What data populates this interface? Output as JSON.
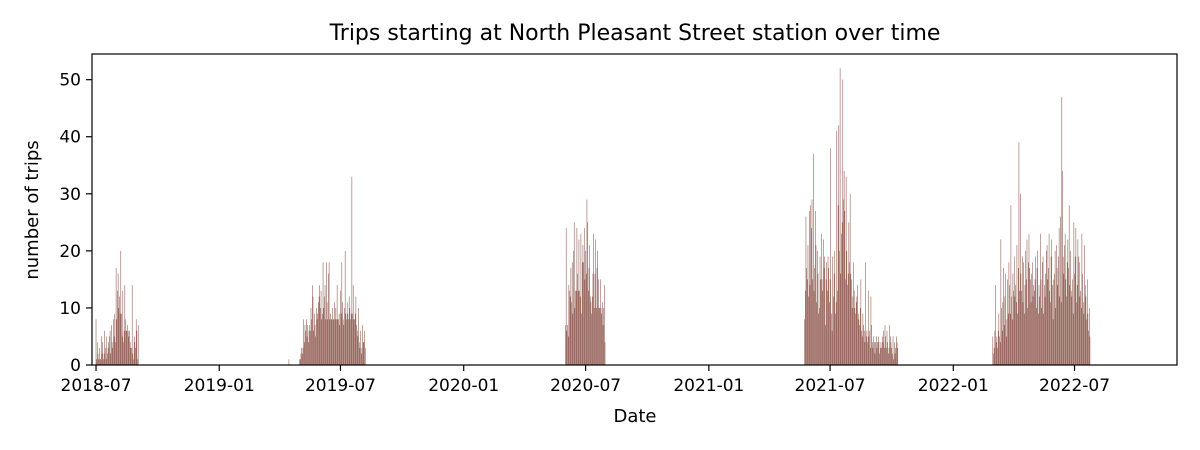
{
  "chart_data": {
    "type": "bar",
    "title": "Trips starting at North Pleasant Street station over time",
    "xlabel": "Date",
    "ylabel": "number of trips",
    "xlim": [
      "2018-06-25",
      "2022-12-01"
    ],
    "ylim": [
      0,
      54.5
    ],
    "x_ticks": [
      "2018-07",
      "2019-01",
      "2019-07",
      "2020-01",
      "2020-07",
      "2021-01",
      "2021-07",
      "2022-01",
      "2022-07"
    ],
    "y_ticks": [
      0,
      10,
      20,
      30,
      40,
      50
    ],
    "bar_color": "#8c564b",
    "grid": false,
    "series": [
      {
        "segments": [
          {
            "start": "2018-07-01",
            "values": [
              8,
              1,
              4,
              2,
              1,
              3,
              1,
              1,
              5,
              2,
              4,
              1,
              2,
              6,
              3,
              1,
              5,
              2,
              3,
              4,
              5,
              6,
              2,
              7,
              4,
              3,
              8,
              5,
              9,
              4,
              17,
              8,
              13,
              16,
              10,
              12,
              9,
              20,
              9,
              5,
              13,
              4,
              6,
              14,
              8,
              6,
              6,
              7,
              6,
              5,
              6,
              4,
              3,
              3,
              14,
              2,
              1,
              5,
              4,
              3,
              8,
              6,
              1,
              7
            ]
          },
          {
            "start": "2019-04-15",
            "values": [
              1
            ]
          },
          {
            "start": "2019-05-01",
            "values": [
              1,
              1,
              2,
              3,
              2,
              3,
              8,
              4,
              7,
              6,
              8,
              5,
              7,
              4,
              6,
              7,
              6,
              10,
              8,
              14,
              12,
              6,
              9,
              7,
              5,
              10,
              8,
              9,
              11,
              12,
              14,
              10,
              13,
              8,
              9,
              18,
              10,
              12,
              14,
              8,
              18,
              11,
              8,
              16,
              18,
              8,
              9,
              8,
              8,
              10,
              8,
              8,
              11,
              8,
              10,
              8,
              14,
              8,
              8,
              9,
              7,
              13,
              9,
              18,
              11,
              8,
              7,
              10,
              20,
              9,
              8,
              11,
              9,
              8,
              12,
              10,
              8,
              9,
              33,
              9,
              14,
              8,
              8,
              9,
              12,
              7,
              6,
              5,
              10,
              4,
              3,
              6,
              2,
              3,
              7,
              4,
              4,
              6,
              3
            ]
          },
          {
            "start": "2020-06-01",
            "values": [
              7,
              24,
              6,
              7,
              5,
              14,
              13,
              12,
              17,
              11,
              18,
              9,
              20,
              25,
              10,
              13,
              13,
              24,
              16,
              13,
              22,
              13,
              12,
              23,
              9,
              18,
              21,
              18,
              24,
              15,
              20,
              16,
              29,
              25,
              13,
              17,
              21,
              12,
              11,
              9,
              12,
              16,
              23,
              10,
              16,
              22,
              10,
              17,
              20,
              15,
              10,
              10,
              15,
              10,
              9,
              11,
              7,
              10,
              14,
              4
            ]
          },
          {
            "start": "2021-05-24",
            "values": [
              8,
              13,
              26,
              17,
              15,
              21,
              12,
              27,
              14,
              28,
              24,
              29,
              15,
              37,
              13,
              17,
              27,
              21,
              11,
              20,
              16,
              9,
              10,
              19,
              15,
              23,
              15,
              13,
              22,
              17,
              19,
              7,
              15,
              18,
              13,
              19,
              17,
              11,
              15,
              38,
              9,
              6,
              19,
              12,
              16,
              20,
              9,
              11,
              41,
              13,
              28,
              42,
              20,
              52,
              16,
              23,
              25,
              50,
              29,
              34,
              27,
              15,
              33,
              20,
              14,
              16,
              25,
              18,
              30,
              16,
              15,
              10,
              12,
              18,
              13,
              10,
              9,
              11,
              12,
              14,
              9,
              8,
              7,
              10,
              15,
              6,
              5,
              9,
              7,
              6,
              4,
              18,
              5,
              6,
              4,
              13,
              5,
              6,
              3,
              12,
              7,
              4,
              3,
              5,
              4,
              2,
              4,
              5,
              3,
              4,
              5,
              4,
              2,
              3,
              4,
              3,
              5,
              4,
              6,
              3,
              7,
              5,
              3,
              6,
              4,
              2,
              3,
              7,
              5,
              4,
              3,
              2,
              5,
              1,
              4,
              2,
              3,
              5,
              4,
              3
            ]
          },
          {
            "start": "2022-03-01",
            "values": [
              5,
              2,
              3,
              6,
              14,
              4,
              5,
              3,
              6,
              9,
              5,
              4,
              22,
              10,
              6,
              11,
              17,
              7,
              12,
              16,
              5,
              8,
              15,
              9,
              18,
              14,
              9,
              28,
              12,
              8,
              16,
              13,
              19,
              12,
              14,
              11,
              21,
              9,
              17,
              39,
              13,
              30,
              16,
              13,
              19,
              11,
              18,
              9,
              14,
              20,
              15,
              22,
              10,
              18,
              23,
              17,
              15,
              11,
              16,
              18,
              12,
              14,
              13,
              15,
              19,
              10,
              17,
              20,
              9,
              14,
              12,
              23,
              15,
              10,
              18,
              19,
              9,
              14,
              12,
              16,
              20,
              21,
              15,
              17,
              23,
              13,
              11,
              19,
              22,
              14,
              8,
              15,
              16,
              20,
              10,
              21,
              17,
              14,
              19,
              24,
              12,
              26,
              11,
              47,
              34,
              19,
              16,
              21,
              23,
              15,
              12,
              18,
              22,
              17,
              28,
              14,
              20,
              13,
              12,
              15,
              9,
              25,
              16,
              19,
              24,
              11,
              14,
              22,
              19,
              18,
              12,
              13,
              10,
              23,
              16,
              11,
              9,
              21,
              14,
              12,
              8,
              15,
              9,
              6,
              10,
              5
            ]
          }
        ]
      }
    ]
  }
}
